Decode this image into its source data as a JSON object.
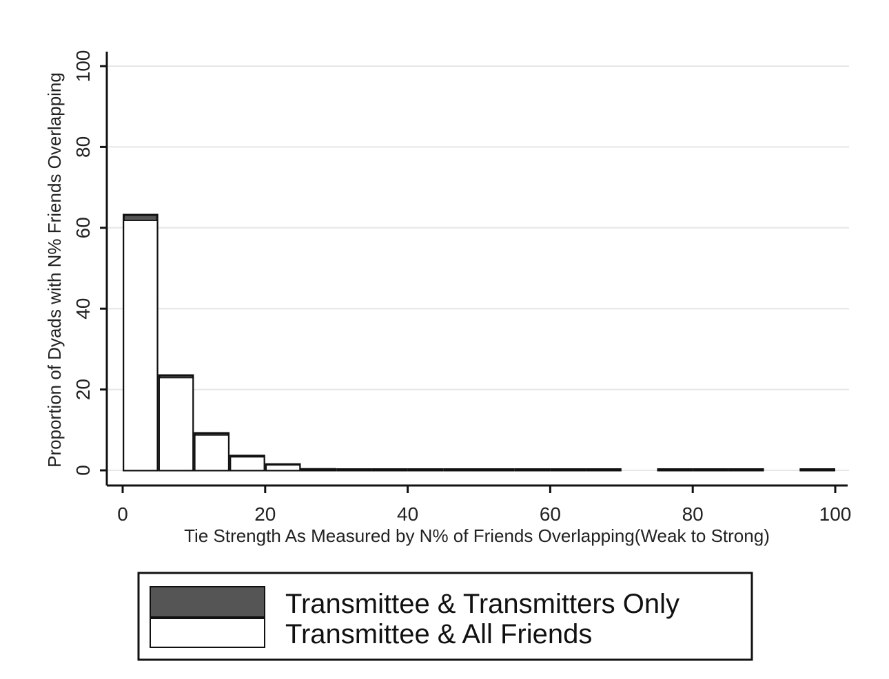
{
  "chart_data": {
    "type": "bar",
    "title": "",
    "xlabel": "Tie Strength As Measured by N% of Friends Overlapping(Weak to Strong)",
    "ylabel": "Proportion of Dyads with N% Friends Overlapping",
    "xlim": [
      0,
      100
    ],
    "ylim": [
      0,
      100
    ],
    "x_ticks": [
      "0",
      "20",
      "40",
      "60",
      "80",
      "100"
    ],
    "y_ticks": [
      "0",
      "20",
      "40",
      "60",
      "80",
      "100"
    ],
    "bin_width": 5,
    "bins": [
      [
        0,
        5
      ],
      [
        5,
        10
      ],
      [
        10,
        15
      ],
      [
        15,
        20
      ],
      [
        20,
        25
      ],
      [
        25,
        30
      ],
      [
        30,
        35
      ],
      [
        35,
        40
      ],
      [
        40,
        45
      ],
      [
        45,
        50
      ],
      [
        50,
        55
      ],
      [
        55,
        60
      ],
      [
        60,
        65
      ],
      [
        65,
        70
      ],
      [
        70,
        75
      ],
      [
        75,
        80
      ],
      [
        80,
        85
      ],
      [
        85,
        90
      ],
      [
        90,
        95
      ],
      [
        95,
        100
      ]
    ],
    "grid": true,
    "legend_position": "bottom",
    "series": [
      {
        "name": "Transmittee & Transmitters Only",
        "color": "#555555",
        "values": [
          63.2,
          23.5,
          9.2,
          3.6,
          1.5,
          0.3,
          0.2,
          0.2,
          0.2,
          0.2,
          0.2,
          0.2,
          0.2,
          0.2,
          0,
          0.2,
          0.2,
          0.2,
          0,
          0.2
        ]
      },
      {
        "name": "Transmittee & All Friends",
        "color": "#ffffff",
        "values": [
          61.8,
          22.9,
          8.7,
          3.3,
          1.3,
          0.2,
          0.2,
          0.2,
          0.2,
          0.2,
          0.2,
          0.2,
          0.2,
          0.2,
          0,
          0.2,
          0.2,
          0.2,
          0,
          0.2
        ]
      }
    ]
  }
}
